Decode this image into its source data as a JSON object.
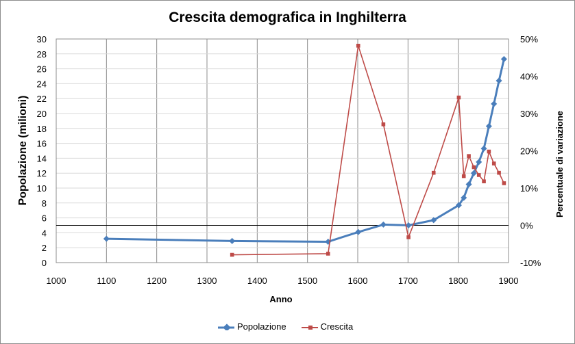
{
  "chart_data": {
    "type": "line",
    "title": "Crescita demografica in Inghilterra",
    "xlabel": "Anno",
    "ylabel": "Popolazione (milioni)",
    "y2label": "Percentuale di variazione",
    "xlim": [
      1000,
      1900
    ],
    "ylim": [
      0,
      30
    ],
    "y2lim": [
      -10,
      50
    ],
    "x_ticks": [
      "1000",
      "1100",
      "1200",
      "1300",
      "1400",
      "1500",
      "1600",
      "1700",
      "1800",
      "1900"
    ],
    "y_ticks": [
      "0",
      "2",
      "4",
      "6",
      "8",
      "10",
      "12",
      "14",
      "16",
      "18",
      "20",
      "22",
      "24",
      "26",
      "28",
      "30"
    ],
    "y2_ticks": [
      "-10%",
      "0%",
      "10%",
      "20%",
      "30%",
      "40%",
      "50%"
    ],
    "grid": "vertical gridlines and horizontal gridlines",
    "legend_position": "bottom",
    "series": [
      {
        "name": "Popolazione",
        "axis": "left",
        "color": "#4a7ebb",
        "marker": "diamond",
        "x": [
          1100,
          1350,
          1541,
          1601,
          1651,
          1701,
          1751,
          1801,
          1811,
          1821,
          1831,
          1841,
          1851,
          1861,
          1871,
          1881,
          1891
        ],
        "y": [
          3.2,
          2.9,
          2.8,
          4.1,
          5.1,
          5.0,
          5.7,
          7.7,
          8.7,
          10.5,
          12.0,
          13.5,
          15.3,
          18.3,
          21.3,
          24.4,
          27.3
        ]
      },
      {
        "name": "Crescita",
        "axis": "right",
        "color": "#be4b48",
        "marker": "square",
        "x": [
          1350,
          1541,
          1601,
          1651,
          1701,
          1751,
          1801,
          1811,
          1821,
          1831,
          1841,
          1851,
          1861,
          1871,
          1881,
          1891
        ],
        "y": [
          -7.9,
          -7.6,
          48.2,
          27.1,
          -3.2,
          14.1,
          34.3,
          13.2,
          18.6,
          15.6,
          13.5,
          11.8,
          19.8,
          16.6,
          14.1,
          11.3
        ]
      }
    ]
  }
}
